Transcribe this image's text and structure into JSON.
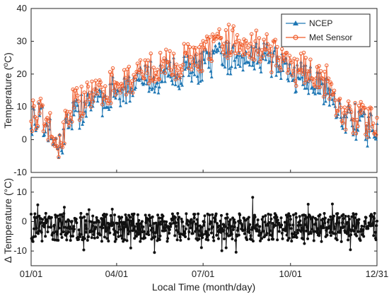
{
  "chart_data": [
    {
      "type": "line",
      "ylabel_main": "Temperature (",
      "ylabel_sup": "o",
      "ylabel_end": "C)",
      "ylim": [
        -10,
        40
      ],
      "yticks": [
        -10,
        0,
        10,
        20,
        30,
        40
      ],
      "grid": false,
      "legend_position": "top-right",
      "series": [
        {
          "name": "NCEP",
          "color": "#1f77b4",
          "marker": "triangle",
          "anchors_day": [
            1,
            10,
            20,
            28,
            35,
            45,
            60,
            75,
            90,
            105,
            120,
            135,
            150,
            165,
            180,
            195,
            210,
            225,
            240,
            255,
            270,
            285,
            300,
            315,
            325,
            335,
            345,
            355,
            365
          ],
          "anchors_value": [
            7,
            6,
            3,
            -4,
            2,
            8,
            10,
            12,
            15,
            16,
            18,
            19,
            20,
            21,
            22,
            24,
            25,
            26,
            26,
            24,
            20,
            19,
            18,
            14,
            9,
            6,
            5,
            3,
            4
          ]
        },
        {
          "name": "Met Sensor",
          "color": "#f05a28",
          "marker": "circle",
          "anchors_day": [
            1,
            10,
            20,
            28,
            35,
            45,
            60,
            75,
            90,
            105,
            120,
            135,
            150,
            165,
            180,
            195,
            210,
            225,
            240,
            255,
            270,
            285,
            300,
            315,
            325,
            335,
            345,
            355,
            365
          ],
          "anchors_value": [
            8,
            7,
            4,
            -5,
            3,
            10,
            12,
            14,
            17,
            18,
            20,
            22,
            22,
            24,
            25,
            27,
            29,
            30,
            28,
            26,
            22,
            21,
            20,
            16,
            10,
            7,
            6,
            4,
            5
          ]
        }
      ]
    },
    {
      "type": "line",
      "ylabel": "Δ Temperature (°C)",
      "ylim": [
        -15,
        15
      ],
      "yticks": [
        -10,
        0,
        10
      ],
      "grid": false,
      "series": [
        {
          "name": "Δ Temperature",
          "color": "#111111",
          "marker": "circle",
          "mean": -2,
          "spread": 3
        }
      ],
      "xlabel": "Local Time (month/day)",
      "xticks": [
        "01/01",
        "04/01",
        "07/01",
        "10/01",
        "12/31"
      ],
      "xtick_days": [
        1,
        91,
        182,
        274,
        365
      ]
    }
  ],
  "legend": {
    "items": [
      {
        "label": "NCEP",
        "color": "#1f77b4",
        "marker": "triangle"
      },
      {
        "label": "Met Sensor",
        "color": "#f05a28",
        "marker": "circle"
      }
    ]
  }
}
